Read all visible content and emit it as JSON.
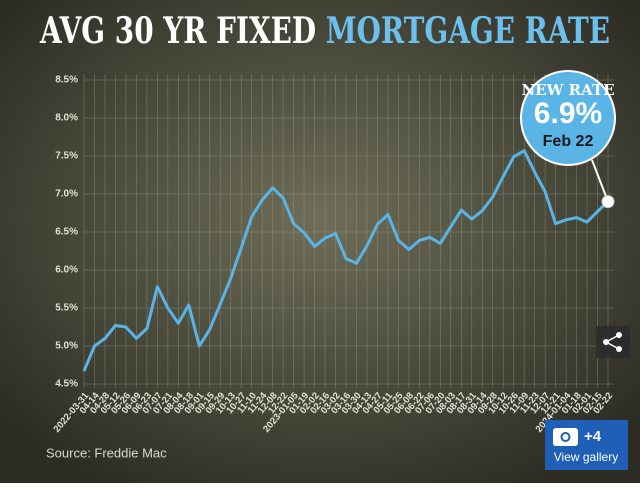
{
  "chart_data": {
    "type": "line",
    "title": "AVG 30 YR FIXED",
    "title_highlight": "MORTGAGE RATE",
    "categories": [
      "2022-03-31",
      "04-14",
      "04-28",
      "05-12",
      "05-26",
      "06-09",
      "06-23",
      "07-07",
      "07-21",
      "08-04",
      "08-18",
      "09-01",
      "09-15",
      "09-29",
      "10-13",
      "10-27",
      "11-10",
      "11-24",
      "12-08",
      "12-22",
      "2023-01-05",
      "01-19",
      "02-02",
      "02-16",
      "03-02",
      "03-16",
      "03-30",
      "04-13",
      "04-27",
      "05-11",
      "05-25",
      "06-08",
      "06-22",
      "07-06",
      "07-20",
      "08-03",
      "08-17",
      "08-31",
      "09-14",
      "09-28",
      "10-12",
      "10-26",
      "11-09",
      "11-23",
      "12-07",
      "12-21",
      "2024-01-04",
      "01-18",
      "02-01",
      "02-15",
      "02-22"
    ],
    "values": [
      4.67,
      5.0,
      5.1,
      5.27,
      5.25,
      5.1,
      5.23,
      5.78,
      5.5,
      5.3,
      5.54,
      5.0,
      5.22,
      5.55,
      5.89,
      6.29,
      6.7,
      6.92,
      7.08,
      6.95,
      6.61,
      6.49,
      6.31,
      6.42,
      6.48,
      6.15,
      6.09,
      6.32,
      6.6,
      6.73,
      6.39,
      6.27,
      6.39,
      6.43,
      6.35,
      6.57,
      6.79,
      6.67,
      6.78,
      6.96,
      7.23,
      7.49,
      7.57,
      7.29,
      7.03,
      6.61,
      6.66,
      6.69,
      6.63,
      6.77,
      6.9
    ],
    "color": "#5ab4e6",
    "ylim": [
      4.5,
      8.5
    ],
    "yticks": [
      {
        "value": 4.5,
        "label": "4.5%"
      },
      {
        "value": 5.0,
        "label": "5.0%"
      },
      {
        "value": 5.5,
        "label": "5.5%"
      },
      {
        "value": 6.0,
        "label": "6.0%"
      },
      {
        "value": 6.5,
        "label": "6.5%"
      },
      {
        "value": 7.0,
        "label": "7.0%"
      },
      {
        "value": 7.5,
        "label": "7.5%"
      },
      {
        "value": 8.0,
        "label": "8.0%"
      },
      {
        "value": 8.5,
        "label": "8.5%"
      }
    ],
    "grid": true,
    "annotation": {
      "heading": "NEW RATE",
      "value_label": "6.9%",
      "date": "Feb 22"
    },
    "source": "Source: Freddie Mac"
  },
  "ui": {
    "gallery_count": "+4",
    "gallery_label": "View gallery"
  }
}
